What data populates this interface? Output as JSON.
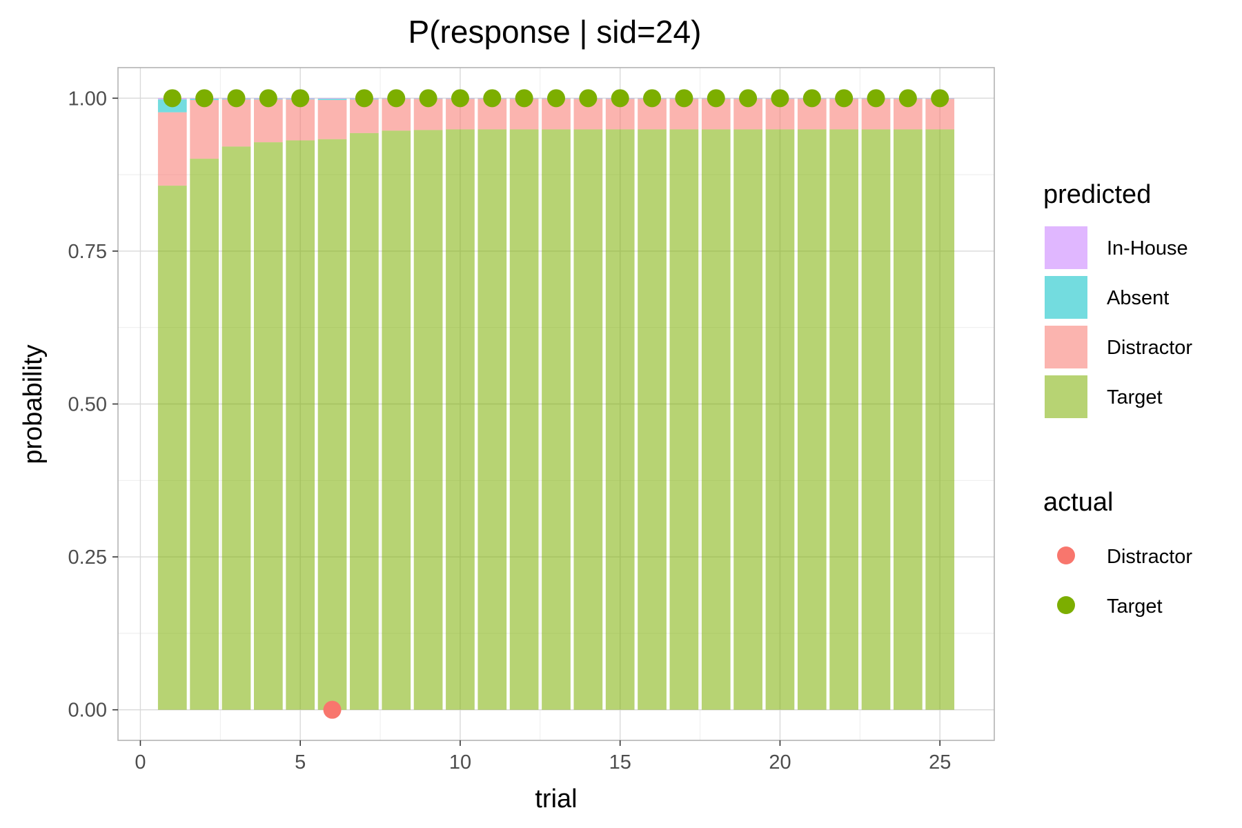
{
  "chart_data": {
    "type": "bar",
    "stacked": true,
    "title": "P(response | sid=24)",
    "xlabel": "trial",
    "ylabel": "probability",
    "xlim": [
      -0.7,
      26.7
    ],
    "ylim": [
      -0.05,
      1.05
    ],
    "x_ticks": [
      0,
      5,
      10,
      15,
      20,
      25
    ],
    "x_tick_labels": [
      "0",
      "5",
      "10",
      "15",
      "20",
      "25"
    ],
    "y_ticks": [
      0,
      0.25,
      0.5,
      0.75,
      1
    ],
    "y_tick_labels": [
      "0.00",
      "0.25",
      "0.50",
      "0.75",
      "1.00"
    ],
    "grid": true,
    "legend_position": "right",
    "categories": [
      1,
      2,
      3,
      4,
      5,
      6,
      7,
      8,
      9,
      10,
      11,
      12,
      13,
      14,
      15,
      16,
      17,
      18,
      19,
      20,
      21,
      22,
      23,
      24,
      25
    ],
    "predicted_legend_title": "predicted",
    "series": [
      {
        "name": "Target",
        "color": "#7CAE00",
        "values": [
          0.857,
          0.901,
          0.921,
          0.928,
          0.931,
          0.933,
          0.943,
          0.947,
          0.948,
          0.949,
          0.949,
          0.949,
          0.949,
          0.949,
          0.949,
          0.949,
          0.949,
          0.949,
          0.949,
          0.949,
          0.949,
          0.949,
          0.949,
          0.949,
          0.949
        ]
      },
      {
        "name": "Distractor",
        "color": "#F8766D",
        "values": [
          0.12,
          0.096,
          0.077,
          0.07,
          0.067,
          0.064,
          0.055,
          0.052,
          0.051,
          0.05,
          0.05,
          0.05,
          0.05,
          0.05,
          0.05,
          0.05,
          0.05,
          0.05,
          0.05,
          0.05,
          0.05,
          0.05,
          0.05,
          0.05,
          0.05
        ]
      },
      {
        "name": "Absent",
        "color": "#00BFC4",
        "values": [
          0.021,
          0.002,
          0.001,
          0.001,
          0.001,
          0.002,
          0.001,
          0.0005,
          0.0005,
          0.0005,
          0.0005,
          0.0005,
          0.0005,
          0.0005,
          0.0005,
          0.0005,
          0.0005,
          0.0005,
          0.0005,
          0.0005,
          0.0005,
          0.0005,
          0.0005,
          0.0005,
          0.0005
        ]
      },
      {
        "name": "In-House",
        "color": "#C77CFF",
        "values": [
          0.002,
          0.001,
          0.001,
          0.001,
          0.001,
          0.001,
          0.001,
          0.0005,
          0.0005,
          0.0005,
          0.0005,
          0.0005,
          0.0005,
          0.0005,
          0.0005,
          0.0005,
          0.0005,
          0.0005,
          0.0005,
          0.0005,
          0.0005,
          0.0005,
          0.0005,
          0.0005,
          0.0005
        ]
      }
    ],
    "predicted_legend_order": [
      "In-House",
      "Absent",
      "Distractor",
      "Target"
    ],
    "bar_alpha": 0.55,
    "actual_legend_title": "actual",
    "actual_legend": [
      {
        "name": "Distractor",
        "color": "#F8766D"
      },
      {
        "name": "Target",
        "color": "#7CAE00"
      }
    ],
    "actual_points": [
      {
        "x": 1,
        "y": 1,
        "response": "Target"
      },
      {
        "x": 2,
        "y": 1,
        "response": "Target"
      },
      {
        "x": 3,
        "y": 1,
        "response": "Target"
      },
      {
        "x": 4,
        "y": 1,
        "response": "Target"
      },
      {
        "x": 5,
        "y": 1,
        "response": "Target"
      },
      {
        "x": 6,
        "y": 0,
        "response": "Distractor"
      },
      {
        "x": 7,
        "y": 1,
        "response": "Target"
      },
      {
        "x": 8,
        "y": 1,
        "response": "Target"
      },
      {
        "x": 9,
        "y": 1,
        "response": "Target"
      },
      {
        "x": 10,
        "y": 1,
        "response": "Target"
      },
      {
        "x": 11,
        "y": 1,
        "response": "Target"
      },
      {
        "x": 12,
        "y": 1,
        "response": "Target"
      },
      {
        "x": 13,
        "y": 1,
        "response": "Target"
      },
      {
        "x": 14,
        "y": 1,
        "response": "Target"
      },
      {
        "x": 15,
        "y": 1,
        "response": "Target"
      },
      {
        "x": 16,
        "y": 1,
        "response": "Target"
      },
      {
        "x": 17,
        "y": 1,
        "response": "Target"
      },
      {
        "x": 18,
        "y": 1,
        "response": "Target"
      },
      {
        "x": 19,
        "y": 1,
        "response": "Target"
      },
      {
        "x": 20,
        "y": 1,
        "response": "Target"
      },
      {
        "x": 21,
        "y": 1,
        "response": "Target"
      },
      {
        "x": 22,
        "y": 1,
        "response": "Target"
      },
      {
        "x": 23,
        "y": 1,
        "response": "Target"
      },
      {
        "x": 24,
        "y": 1,
        "response": "Target"
      },
      {
        "x": 25,
        "y": 1,
        "response": "Target"
      }
    ]
  }
}
